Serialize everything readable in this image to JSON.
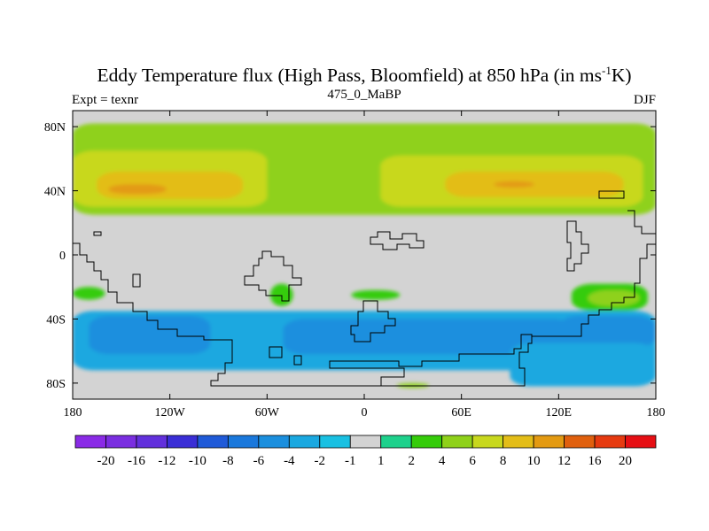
{
  "chart_data": {
    "type": "heatmap",
    "title": "Eddy Temperature flux (High Pass, Bloomfield) at 850 hPa (in ms",
    "title_superscript": "-1",
    "title_suffix": "K)",
    "subtitle_left": "Expt = texnr",
    "subtitle_center": "475_0_MaBP",
    "subtitle_right": "DJF",
    "x_ticks": [
      {
        "value": -180,
        "label": "180"
      },
      {
        "value": -120,
        "label": "120W"
      },
      {
        "value": -60,
        "label": "60W"
      },
      {
        "value": 0,
        "label": "0"
      },
      {
        "value": 60,
        "label": "60E"
      },
      {
        "value": 120,
        "label": "120E"
      },
      {
        "value": 180,
        "label": "180"
      }
    ],
    "y_ticks": [
      {
        "value": 80,
        "label": "80N"
      },
      {
        "value": 40,
        "label": "40N"
      },
      {
        "value": 0,
        "label": "0"
      },
      {
        "value": -40,
        "label": "40S"
      },
      {
        "value": -80,
        "label": "80S"
      }
    ],
    "xlim": [
      -180,
      180
    ],
    "ylim": [
      -90,
      90
    ],
    "colorbar": {
      "labels": [
        "-20",
        "-16",
        "-12",
        "-10",
        "-8",
        "-6",
        "-4",
        "-2",
        "-1",
        "1",
        "2",
        "4",
        "6",
        "8",
        "10",
        "12",
        "16",
        "20"
      ],
      "colors": [
        "#8a2be6",
        "#7a2ee0",
        "#6230dc",
        "#3a2ed6",
        "#1f5ad8",
        "#1a78dc",
        "#1b8fde",
        "#1aa8e0",
        "#19c0e2",
        "#d3d3d3",
        "#1ed18c",
        "#35cc0a",
        "#8fd11a",
        "#c8d81e",
        "#e3bd18",
        "#e39a12",
        "#e0600e",
        "#e63a10",
        "#e60f14"
      ]
    },
    "field_regions": [
      {
        "level": "4",
        "lon": [
          -180,
          180
        ],
        "lat": [
          25,
          82
        ]
      },
      {
        "level": "6",
        "lon": [
          -180,
          -60
        ],
        "lat": [
          30,
          65
        ]
      },
      {
        "level": "8",
        "lon": [
          -165,
          -75
        ],
        "lat": [
          35,
          52
        ]
      },
      {
        "level": "10",
        "lon": [
          -158,
          -122
        ],
        "lat": [
          38,
          44
        ]
      },
      {
        "level": "6",
        "lon": [
          10,
          172
        ],
        "lat": [
          30,
          62
        ]
      },
      {
        "level": "8",
        "lon": [
          50,
          160
        ],
        "lat": [
          36,
          52
        ]
      },
      {
        "level": "10",
        "lon": [
          80,
          105
        ],
        "lat": [
          42,
          46
        ]
      },
      {
        "level": "-2",
        "lon": [
          -180,
          180
        ],
        "lat": [
          -72,
          -35
        ]
      },
      {
        "level": "-4",
        "lon": [
          -170,
          -95
        ],
        "lat": [
          -62,
          -38
        ]
      },
      {
        "level": "-4",
        "lon": [
          -50,
          130
        ],
        "lat": [
          -62,
          -40
        ]
      },
      {
        "level": "-4",
        "lon": [
          120,
          180
        ],
        "lat": [
          -58,
          -38
        ]
      },
      {
        "level": "-2",
        "lon": [
          90,
          180
        ],
        "lat": [
          -82,
          -55
        ]
      },
      {
        "level": "2",
        "lon": [
          -180,
          -160
        ],
        "lat": [
          -28,
          -20
        ]
      },
      {
        "level": "2",
        "lon": [
          128,
          175
        ],
        "lat": [
          -35,
          -18
        ]
      },
      {
        "level": "4",
        "lon": [
          138,
          170
        ],
        "lat": [
          -32,
          -22
        ]
      },
      {
        "level": "2",
        "lon": [
          -58,
          -44
        ],
        "lat": [
          -32,
          -18
        ]
      },
      {
        "level": "2",
        "lon": [
          -8,
          22
        ],
        "lat": [
          -28,
          -22
        ]
      },
      {
        "level": "4",
        "lon": [
          20,
          40
        ],
        "lat": [
          -83,
          -80
        ]
      }
    ]
  }
}
